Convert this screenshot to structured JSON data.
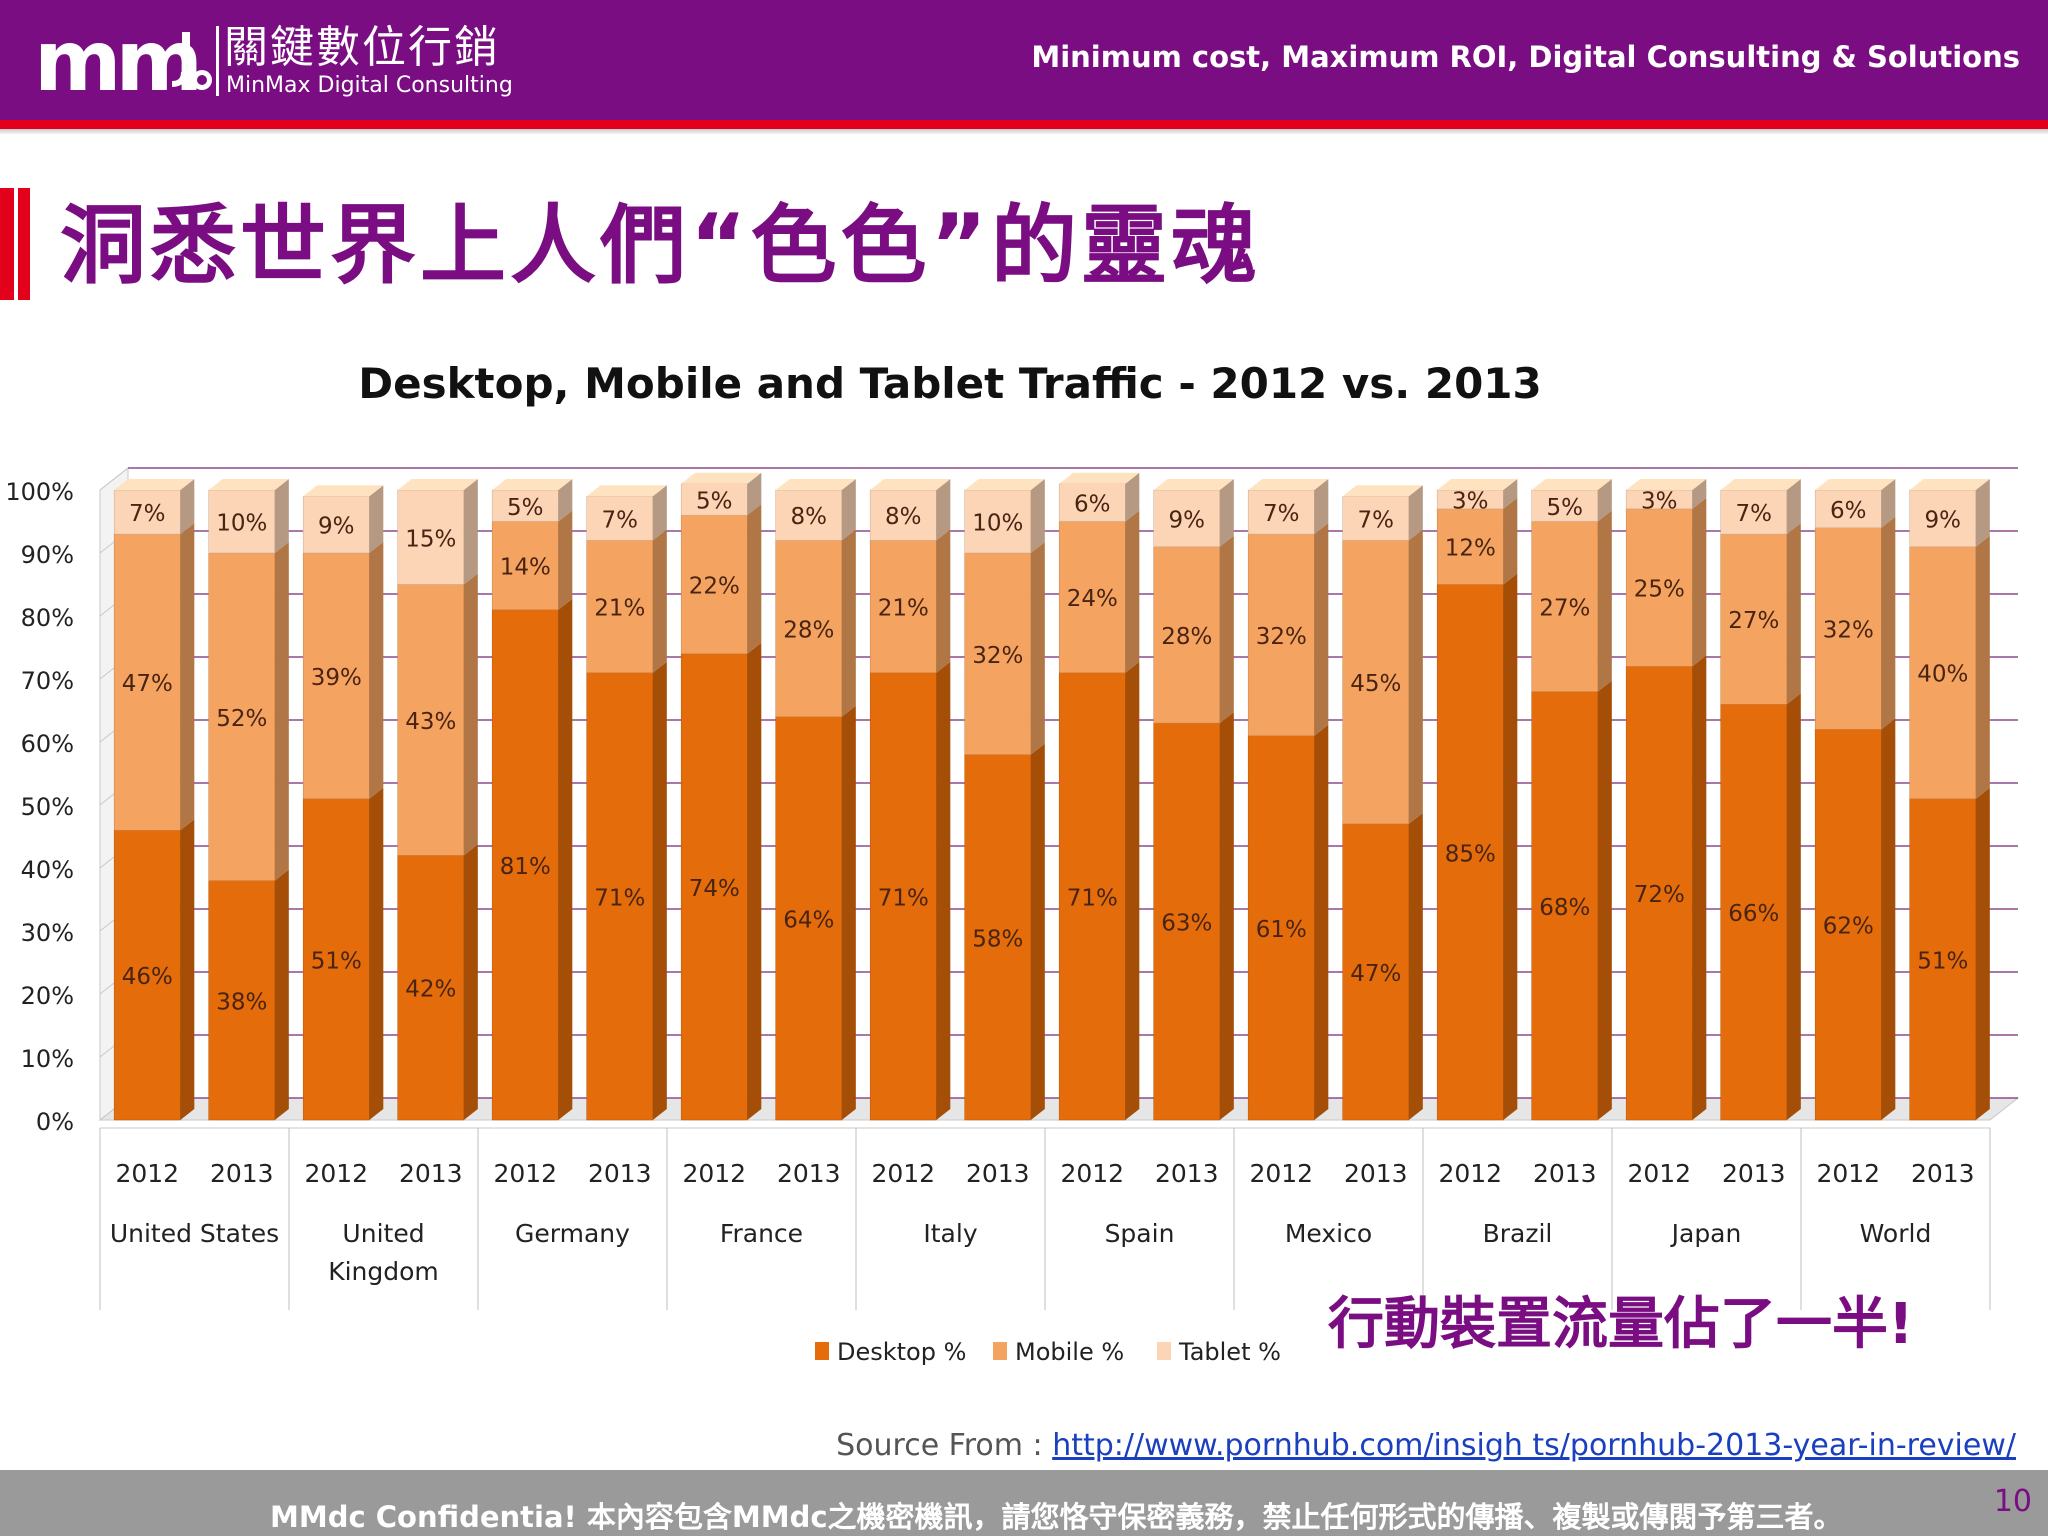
{
  "header": {
    "logo_mark": "mm",
    "logo_cn": "關鍵數位行銷",
    "logo_en": "MinMax Digital Consulting",
    "tagline": "Minimum cost, Maximum ROI, Digital Consulting & Solutions"
  },
  "page_title": "洞悉世界上人們“色色”的靈魂",
  "callout": "行動裝置流量佔了一半!",
  "source": {
    "label": "Source From : ",
    "url_text": "http://www.pornhub.com/insigh ts/pornhub-2013-year-in-review/"
  },
  "footer": {
    "text": "MMdc Confidentia! 本內容包含MMdc之機密機訊，請您恪守保密義務，禁止任何形式的傳播、複製或傳閱予第三者。",
    "page_number": "10"
  },
  "colors": {
    "brand": "#7a0d82",
    "accent_red": "#e2001a",
    "desktop": "#e46c0a",
    "mobile": "#f4a460",
    "tablet": "#fbd5b5"
  },
  "chart_data": {
    "type": "bar",
    "stacked": true,
    "three_d": true,
    "title": "Desktop, Mobile and Tablet Traffic - 2012 vs. 2013",
    "ylim": [
      0,
      100
    ],
    "yticks": [
      "0%",
      "10%",
      "20%",
      "30%",
      "40%",
      "50%",
      "60%",
      "70%",
      "80%",
      "90%",
      "100%"
    ],
    "grid": true,
    "legend_position": "bottom",
    "groups": [
      {
        "label_lines": [
          "United States"
        ],
        "years": [
          "2012",
          "2013"
        ]
      },
      {
        "label_lines": [
          "United",
          "Kingdom"
        ],
        "years": [
          "2012",
          "2013"
        ]
      },
      {
        "label_lines": [
          "Germany"
        ],
        "years": [
          "2012",
          "2013"
        ]
      },
      {
        "label_lines": [
          "France"
        ],
        "years": [
          "2012",
          "2013"
        ]
      },
      {
        "label_lines": [
          "Italy"
        ],
        "years": [
          "2012",
          "2013"
        ]
      },
      {
        "label_lines": [
          "Spain"
        ],
        "years": [
          "2012",
          "2013"
        ]
      },
      {
        "label_lines": [
          "Mexico"
        ],
        "years": [
          "2012",
          "2013"
        ]
      },
      {
        "label_lines": [
          "Brazil"
        ],
        "years": [
          "2012",
          "2013"
        ]
      },
      {
        "label_lines": [
          "Japan"
        ],
        "years": [
          "2012",
          "2013"
        ]
      },
      {
        "label_lines": [
          "World"
        ],
        "years": [
          "2012",
          "2013"
        ]
      }
    ],
    "series": [
      {
        "name": "Desktop %",
        "color": "#e46c0a",
        "values": [
          46,
          38,
          51,
          42,
          81,
          71,
          74,
          64,
          71,
          58,
          71,
          63,
          61,
          47,
          85,
          68,
          72,
          66,
          62,
          51
        ]
      },
      {
        "name": "Mobile %",
        "color": "#f4a460",
        "values": [
          47,
          52,
          39,
          43,
          14,
          21,
          22,
          28,
          21,
          32,
          24,
          28,
          32,
          45,
          12,
          27,
          25,
          27,
          32,
          40
        ]
      },
      {
        "name": "Tablet %",
        "color": "#fbd5b5",
        "values": [
          7,
          10,
          9,
          15,
          5,
          7,
          5,
          8,
          8,
          10,
          6,
          9,
          7,
          7,
          3,
          5,
          3,
          7,
          6,
          9
        ]
      }
    ]
  }
}
